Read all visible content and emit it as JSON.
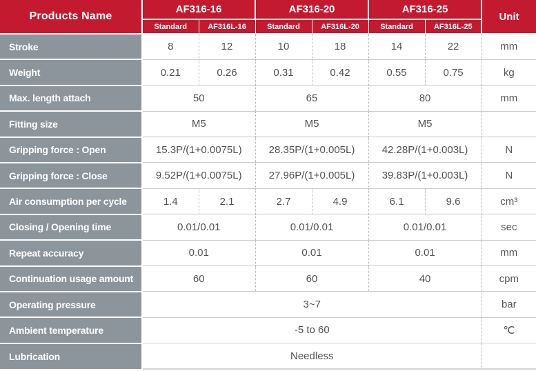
{
  "header": {
    "products_name": "Products Name",
    "unit_label": "Unit",
    "groups": [
      {
        "name": "AF316-16",
        "sub": [
          "Standard",
          "AF316L-16"
        ]
      },
      {
        "name": "AF316-20",
        "sub": [
          "Standard",
          "AF316L-20"
        ]
      },
      {
        "name": "AF316-25",
        "sub": [
          "Standard",
          "AF316L-25"
        ]
      }
    ]
  },
  "rows": [
    {
      "label": "Stroke",
      "values": [
        "8",
        "12",
        "10",
        "18",
        "14",
        "22"
      ],
      "unit": "mm"
    },
    {
      "label": "Weight",
      "values": [
        "0.21",
        "0.26",
        "0.31",
        "0.42",
        "0.55",
        "0.75"
      ],
      "unit": "kg"
    },
    {
      "label": "Max. length attach",
      "values": [
        "50",
        "65",
        "80"
      ],
      "unit": "mm"
    },
    {
      "label": "Fitting size",
      "values": [
        "M5",
        "M5",
        "M5"
      ],
      "unit": ""
    },
    {
      "label": "Gripping force : Open",
      "values": [
        "15.3P/(1+0.0075L)",
        "28.35P/(1+0.005L)",
        "42.28P/(1+0.003L)"
      ],
      "unit": "N"
    },
    {
      "label": "Gripping force : Close",
      "values": [
        "9.52P/(1+0.0075L)",
        "27.96P/(1+0.005L)",
        "39.83P/(1+0.003L)"
      ],
      "unit": "N"
    },
    {
      "label": "Air consumption per cycle",
      "values": [
        "1.4",
        "2.1",
        "2.7",
        "4.9",
        "6.1",
        "9.6"
      ],
      "unit": "cm³"
    },
    {
      "label": "Closing / Opening time",
      "values": [
        "0.01/0.01",
        "0.01/0.01",
        "0.01/0.01"
      ],
      "unit": "sec"
    },
    {
      "label": "Repeat accuracy",
      "values": [
        "0.01",
        "0.01",
        "0.01"
      ],
      "unit": "mm"
    },
    {
      "label": "Continuation usage amount",
      "values": [
        "60",
        "60",
        "40"
      ],
      "unit": "cpm"
    },
    {
      "label": "Operating pressure",
      "values": [
        "3~7"
      ],
      "unit": "bar"
    },
    {
      "label": "Ambient temperature",
      "values": [
        "-5 to 60"
      ],
      "unit": "℃"
    },
    {
      "label": "Lubrication",
      "values": [
        "Needless"
      ],
      "unit": ""
    }
  ],
  "colors": {
    "header_red": "#C31A30",
    "label_gray": "#8C959C",
    "value_text": "#4F5255"
  }
}
